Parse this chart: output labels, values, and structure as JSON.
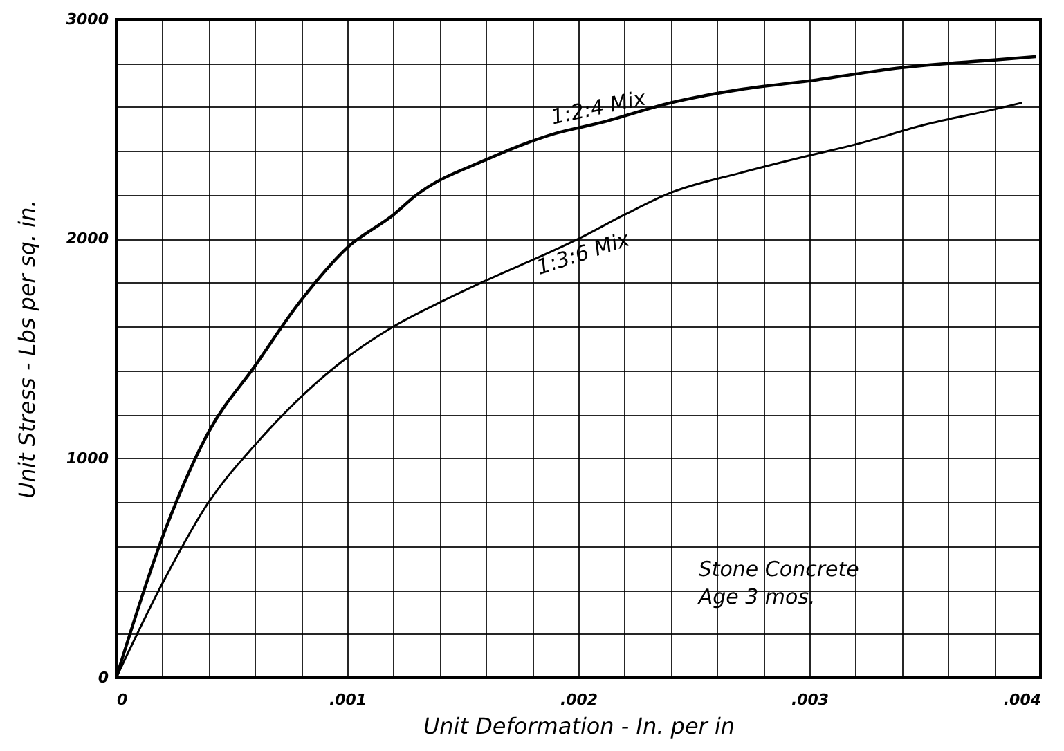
{
  "chart_data": {
    "type": "line",
    "xlabel": "Unit Deformation  -  In. per in",
    "ylabel": "Unit Stress - Lbs per sq. in.",
    "xlim": [
      0,
      0.004
    ],
    "ylim": [
      0,
      3000
    ],
    "xticks": [
      0,
      {
        "value": 0.0002,
        "label": null
      },
      {
        "value": 0.0004,
        "label": null
      },
      {
        "value": 0.0006,
        "label": null
      },
      {
        "value": 0.0008,
        "label": null
      },
      {
        "value": 0.001,
        "label": ".001"
      },
      {
        "value": 0.0012,
        "label": null
      },
      {
        "value": 0.0014,
        "label": null
      },
      {
        "value": 0.0016,
        "label": null
      },
      {
        "value": 0.0018,
        "label": null
      },
      {
        "value": 0.002,
        "label": ".002"
      },
      {
        "value": 0.0022,
        "label": null
      },
      {
        "value": 0.0024,
        "label": null
      },
      {
        "value": 0.0026,
        "label": null
      },
      {
        "value": 0.0028,
        "label": null
      },
      {
        "value": 0.003,
        "label": ".003"
      },
      {
        "value": 0.0032,
        "label": null
      },
      {
        "value": 0.0034,
        "label": null
      },
      {
        "value": 0.0036,
        "label": null
      },
      {
        "value": 0.0038,
        "label": null
      },
      {
        "value": 0.004,
        "label": ".004"
      }
    ],
    "yticks": [
      0,
      {
        "value": 200,
        "label": null
      },
      {
        "value": 400,
        "label": null
      },
      {
        "value": 600,
        "label": null
      },
      {
        "value": 800,
        "label": null
      },
      1000,
      {
        "value": 1200,
        "label": null
      },
      {
        "value": 1400,
        "label": null
      },
      {
        "value": 1600,
        "label": null
      },
      {
        "value": 1800,
        "label": null
      },
      2000,
      {
        "value": 2200,
        "label": null
      },
      {
        "value": 2400,
        "label": null
      },
      {
        "value": 2600,
        "label": null
      },
      {
        "value": 2800,
        "label": null
      },
      3000
    ],
    "grid": true,
    "marker": "none",
    "line_style": "solid",
    "series": [
      {
        "name": "1:2:4 Mix",
        "color": "#000000",
        "x": [
          0,
          0.0002,
          0.0004,
          0.0006,
          0.0008,
          0.001,
          0.0012,
          0.0013,
          0.0016,
          0.0019,
          0.0021,
          0.0024,
          0.0027,
          0.003,
          0.0034,
          0.0038,
          0.00398
        ],
        "values": [
          0,
          640,
          1120,
          1420,
          1720,
          1960,
          2110,
          2200,
          2360,
          2480,
          2530,
          2620,
          2680,
          2720,
          2780,
          2815,
          2830
        ]
      },
      {
        "name": "1:3:6 Mix",
        "color": "#000000",
        "x": [
          0,
          0.0002,
          0.0004,
          0.0006,
          0.0008,
          0.001,
          0.0012,
          0.0014,
          0.0016,
          0.0019,
          0.002,
          0.0022,
          0.0024,
          0.0027,
          0.003,
          0.0032,
          0.0035,
          0.0038,
          0.00392
        ],
        "values": [
          0,
          430,
          800,
          1060,
          1280,
          1460,
          1600,
          1710,
          1810,
          1950,
          2000,
          2110,
          2210,
          2300,
          2380,
          2430,
          2520,
          2590,
          2620
        ]
      }
    ],
    "annotations": [
      "Stone Concrete",
      "Age 3 mos."
    ]
  }
}
